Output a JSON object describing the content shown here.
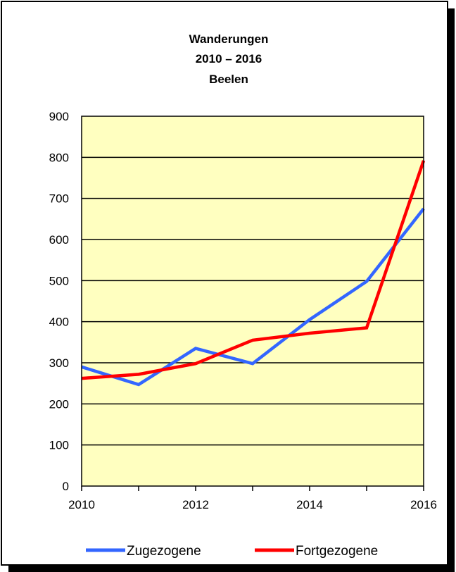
{
  "chart_data": {
    "type": "line",
    "title_lines": [
      "Wanderungen",
      "2010 – 2016",
      "Beelen"
    ],
    "x": [
      2010,
      2011,
      2012,
      2013,
      2014,
      2015,
      2016
    ],
    "x_ticks": [
      "2010",
      "2012",
      "2014",
      "2016"
    ],
    "xlim": [
      2010,
      2016
    ],
    "ylim": [
      0,
      900
    ],
    "y_ticks": [
      "0",
      "100",
      "200",
      "300",
      "400",
      "500",
      "600",
      "700",
      "800",
      "900"
    ],
    "grid": true,
    "legend_position": "bottom",
    "plot_background": "#ffffc0",
    "series": [
      {
        "name": "Zugezogene",
        "color": "#3366ff",
        "values": [
          290,
          247,
          335,
          298,
          405,
          498,
          675
        ]
      },
      {
        "name": "Fortgezogene",
        "color": "#ff0000",
        "values": [
          262,
          272,
          298,
          355,
          372,
          385,
          792
        ]
      }
    ]
  }
}
